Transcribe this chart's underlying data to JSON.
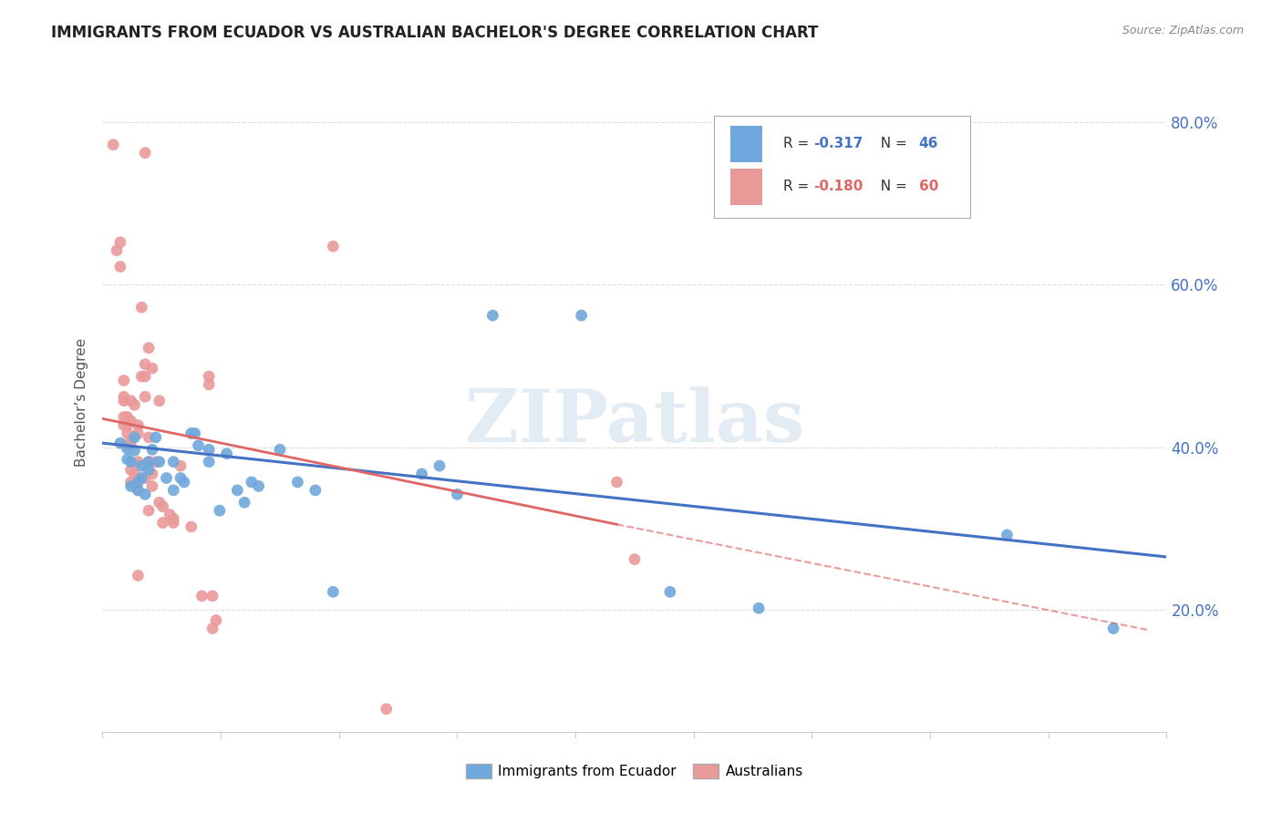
{
  "title": "IMMIGRANTS FROM ECUADOR VS AUSTRALIAN BACHELOR'S DEGREE CORRELATION CHART",
  "source": "Source: ZipAtlas.com",
  "ylabel": "Bachelor’s Degree",
  "color_blue": "#6fa8dc",
  "color_pink": "#ea9999",
  "color_blue_line": "#4472c4",
  "color_pink_line": "#e06666",
  "color_pink_dash": "#e06666",
  "watermark_text": "ZIPatlas",
  "legend_R1": "-0.317",
  "legend_N1": "46",
  "legend_R2": "-0.180",
  "legend_N2": "60",
  "xlim": [
    0.0,
    0.3
  ],
  "ylim": [
    0.05,
    0.86
  ],
  "yticks": [
    0.2,
    0.4,
    0.6,
    0.8
  ],
  "ytick_labels": [
    "20.0%",
    "40.0%",
    "60.0%",
    "80.0%"
  ],
  "blue_line": [
    [
      0.0,
      0.405
    ],
    [
      0.3,
      0.265
    ]
  ],
  "pink_line_solid": [
    [
      0.0,
      0.435
    ],
    [
      0.145,
      0.305
    ]
  ],
  "pink_line_dash": [
    [
      0.145,
      0.305
    ],
    [
      0.295,
      0.175
    ]
  ],
  "blue_points": [
    [
      0.005,
      0.405
    ],
    [
      0.007,
      0.385
    ],
    [
      0.007,
      0.398
    ],
    [
      0.008,
      0.382
    ],
    [
      0.008,
      0.352
    ],
    [
      0.009,
      0.412
    ],
    [
      0.009,
      0.396
    ],
    [
      0.01,
      0.347
    ],
    [
      0.01,
      0.357
    ],
    [
      0.011,
      0.377
    ],
    [
      0.011,
      0.362
    ],
    [
      0.012,
      0.342
    ],
    [
      0.013,
      0.382
    ],
    [
      0.013,
      0.372
    ],
    [
      0.014,
      0.397
    ],
    [
      0.015,
      0.412
    ],
    [
      0.016,
      0.382
    ],
    [
      0.018,
      0.362
    ],
    [
      0.02,
      0.382
    ],
    [
      0.02,
      0.347
    ],
    [
      0.022,
      0.362
    ],
    [
      0.023,
      0.357
    ],
    [
      0.025,
      0.417
    ],
    [
      0.026,
      0.417
    ],
    [
      0.027,
      0.402
    ],
    [
      0.03,
      0.382
    ],
    [
      0.03,
      0.397
    ],
    [
      0.033,
      0.322
    ],
    [
      0.035,
      0.392
    ],
    [
      0.038,
      0.347
    ],
    [
      0.04,
      0.332
    ],
    [
      0.042,
      0.357
    ],
    [
      0.044,
      0.352
    ],
    [
      0.05,
      0.397
    ],
    [
      0.055,
      0.357
    ],
    [
      0.06,
      0.347
    ],
    [
      0.065,
      0.222
    ],
    [
      0.09,
      0.367
    ],
    [
      0.095,
      0.377
    ],
    [
      0.1,
      0.342
    ],
    [
      0.11,
      0.562
    ],
    [
      0.135,
      0.562
    ],
    [
      0.16,
      0.222
    ],
    [
      0.185,
      0.202
    ],
    [
      0.255,
      0.292
    ],
    [
      0.285,
      0.177
    ]
  ],
  "pink_points": [
    [
      0.003,
      0.772
    ],
    [
      0.004,
      0.642
    ],
    [
      0.005,
      0.652
    ],
    [
      0.005,
      0.622
    ],
    [
      0.006,
      0.482
    ],
    [
      0.006,
      0.462
    ],
    [
      0.006,
      0.457
    ],
    [
      0.006,
      0.437
    ],
    [
      0.006,
      0.427
    ],
    [
      0.007,
      0.437
    ],
    [
      0.007,
      0.427
    ],
    [
      0.007,
      0.417
    ],
    [
      0.007,
      0.402
    ],
    [
      0.008,
      0.457
    ],
    [
      0.008,
      0.432
    ],
    [
      0.008,
      0.407
    ],
    [
      0.008,
      0.372
    ],
    [
      0.008,
      0.357
    ],
    [
      0.009,
      0.452
    ],
    [
      0.009,
      0.367
    ],
    [
      0.009,
      0.357
    ],
    [
      0.01,
      0.427
    ],
    [
      0.01,
      0.417
    ],
    [
      0.01,
      0.382
    ],
    [
      0.01,
      0.347
    ],
    [
      0.01,
      0.242
    ],
    [
      0.011,
      0.572
    ],
    [
      0.011,
      0.487
    ],
    [
      0.012,
      0.502
    ],
    [
      0.012,
      0.487
    ],
    [
      0.012,
      0.462
    ],
    [
      0.012,
      0.362
    ],
    [
      0.013,
      0.522
    ],
    [
      0.013,
      0.412
    ],
    [
      0.013,
      0.382
    ],
    [
      0.013,
      0.322
    ],
    [
      0.014,
      0.497
    ],
    [
      0.014,
      0.367
    ],
    [
      0.014,
      0.352
    ],
    [
      0.015,
      0.382
    ],
    [
      0.016,
      0.457
    ],
    [
      0.016,
      0.332
    ],
    [
      0.017,
      0.327
    ],
    [
      0.017,
      0.307
    ],
    [
      0.019,
      0.317
    ],
    [
      0.02,
      0.312
    ],
    [
      0.02,
      0.307
    ],
    [
      0.022,
      0.377
    ],
    [
      0.025,
      0.302
    ],
    [
      0.08,
      0.078
    ],
    [
      0.028,
      0.217
    ],
    [
      0.031,
      0.217
    ],
    [
      0.031,
      0.177
    ],
    [
      0.032,
      0.187
    ],
    [
      0.065,
      0.647
    ],
    [
      0.012,
      0.762
    ],
    [
      0.03,
      0.487
    ],
    [
      0.03,
      0.477
    ],
    [
      0.145,
      0.357
    ],
    [
      0.15,
      0.262
    ]
  ]
}
